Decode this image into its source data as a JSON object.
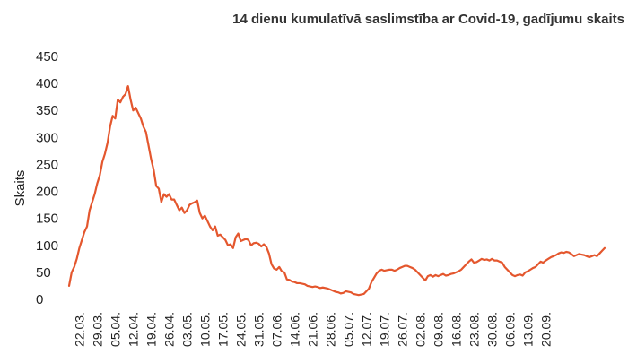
{
  "chart_data": {
    "type": "line",
    "title": "14 dienu kumulatīvā saslimstība ar Covid-19, gadījumu skaits",
    "xlabel": "",
    "ylabel": "Skaits",
    "ylim": [
      0,
      450
    ],
    "yticks": [
      0,
      50,
      100,
      150,
      200,
      250,
      300,
      350,
      400,
      450
    ],
    "grid": false,
    "legend": "none",
    "line_color": "#e4572e",
    "xticks": [
      "22.03.",
      "29.03.",
      "05.04.",
      "12.04.",
      "19.04.",
      "26.04.",
      "03.05.",
      "10.05.",
      "17.05.",
      "24.05.",
      "31.05.",
      "07.06.",
      "14.06.",
      "21.06.",
      "28.06.",
      "05.07.",
      "12.07.",
      "19.07.",
      "26.07.",
      "02.08.",
      "09.08.",
      "16.08.",
      "23.08.",
      "30.08.",
      "06.09.",
      "13.09.",
      "20.09."
    ],
    "x_start": "18.03.",
    "x_end": "20.09.",
    "series": [
      {
        "values": [
          25,
          50,
          60,
          75,
          95,
          110,
          125,
          135,
          165,
          180,
          195,
          215,
          230,
          255,
          270,
          290,
          320,
          340,
          335,
          370,
          365,
          375,
          380,
          395,
          370,
          350,
          355,
          345,
          335,
          320,
          310,
          285,
          260,
          240,
          210,
          205,
          180,
          195,
          190,
          195,
          185,
          185,
          175,
          165,
          170,
          160,
          165,
          175,
          178,
          180,
          183,
          160,
          150,
          155,
          145,
          135,
          128,
          135,
          118,
          120,
          115,
          110,
          100,
          102,
          95,
          115,
          122,
          108,
          110,
          112,
          110,
          100,
          104,
          105,
          103,
          98,
          102,
          97,
          85,
          65,
          57,
          55,
          60,
          52,
          50,
          37,
          36,
          33,
          32,
          30,
          30,
          29,
          28,
          25,
          24,
          23,
          24,
          23,
          21,
          22,
          21,
          20,
          18,
          16,
          14,
          13,
          11,
          12,
          15,
          14,
          13,
          10,
          9,
          8,
          9,
          10,
          15,
          20,
          32,
          40,
          48,
          53,
          55,
          53,
          54,
          55,
          55,
          53,
          55,
          58,
          60,
          62,
          62,
          60,
          58,
          55,
          50,
          45,
          40,
          35,
          43,
          45,
          42,
          45,
          43,
          45,
          47,
          44,
          45,
          47,
          48,
          50,
          52,
          55,
          60,
          65,
          70,
          74,
          68,
          69,
          72,
          75,
          73,
          74,
          72,
          75,
          72,
          72,
          70,
          68,
          60,
          55,
          50,
          45,
          43,
          45,
          46,
          44,
          50,
          52,
          55,
          58,
          60,
          65,
          70,
          68,
          72,
          75,
          78,
          80,
          82,
          85,
          87,
          86,
          88,
          87,
          84,
          80,
          82,
          84,
          83,
          82,
          80,
          78,
          80,
          82,
          80,
          85,
          90,
          95
        ]
      }
    ]
  }
}
